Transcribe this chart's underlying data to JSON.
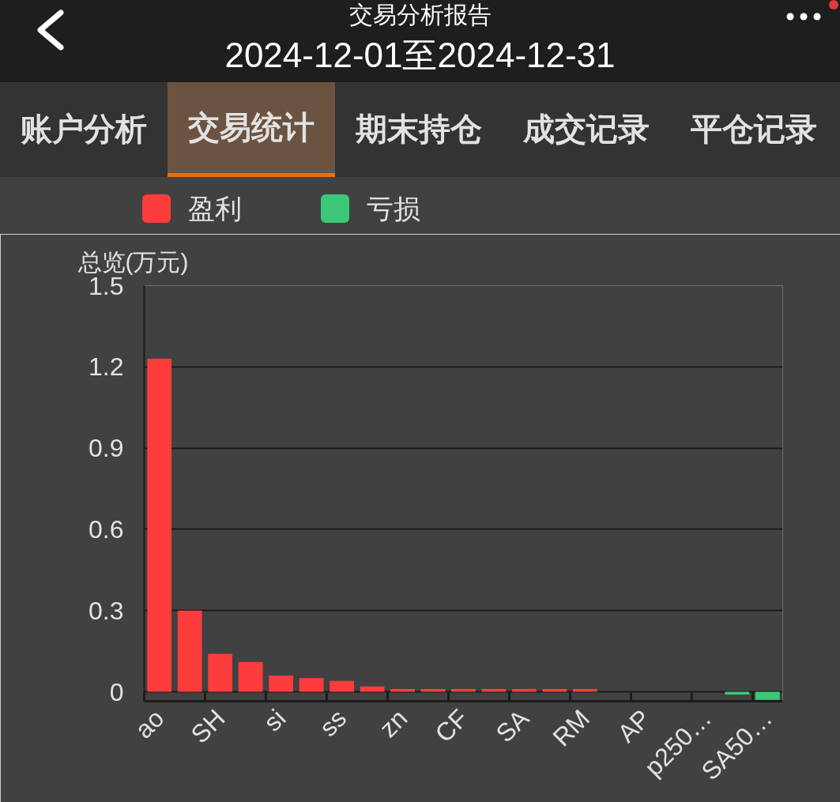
{
  "chart_data": {
    "type": "bar",
    "title": "交易分析报告",
    "subtitle": "2024-12-01至2024-12-31",
    "annotations": [
      "账户分析",
      "交易统计",
      "期末持仓",
      "成交记录",
      "平仓记录"
    ],
    "ylabel": "总览(万元)",
    "categories": [
      "ao",
      null,
      "SH",
      null,
      "si",
      null,
      "ss",
      null,
      "zn",
      null,
      "CF",
      null,
      "SA",
      null,
      "RM",
      null,
      "AP",
      null,
      "p250…",
      null,
      "SA50…"
    ],
    "series": [
      {
        "name": "盈利",
        "color": "#fd3c3c",
        "values": [
          1.23,
          0.3,
          0.14,
          0.11,
          0.06,
          0.05,
          0.04,
          0.02,
          0.01,
          0.01,
          0.01,
          0.01,
          0.01,
          0.01,
          0.01,
          null,
          null,
          null,
          null,
          null,
          null
        ]
      },
      {
        "name": "亏损",
        "color": "#3cc878",
        "values": [
          null,
          null,
          null,
          null,
          null,
          null,
          null,
          null,
          null,
          null,
          null,
          null,
          null,
          null,
          null,
          null,
          null,
          null,
          null,
          -0.01,
          -0.03
        ]
      }
    ],
    "stacked": true,
    "ylim": [
      -0.035,
      1.5
    ],
    "yticks": [
      0,
      0.3,
      0.6,
      0.9,
      1.2,
      1.5
    ],
    "grid": "y",
    "legend": "top"
  }
}
